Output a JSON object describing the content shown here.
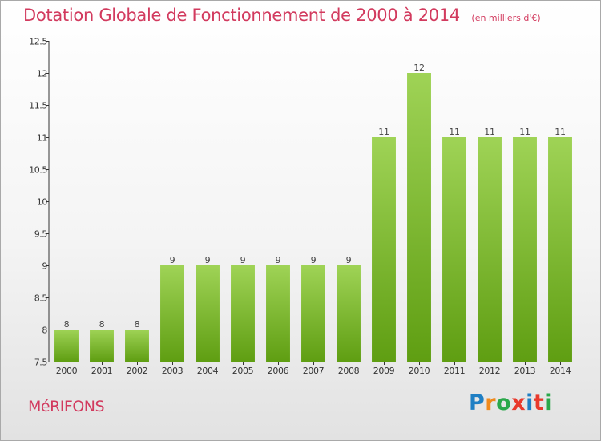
{
  "title": "Dotation Globale de Fonctionnement de 2000 à 2014",
  "subtitle": "(en milliers d'€)",
  "commune": "MéRIFONS",
  "logo": {
    "text": "Proxiti",
    "colors": [
      "#1f7fc4",
      "#f08a1c",
      "#2aa84a",
      "#e8392c",
      "#1f7fc4",
      "#e8392c",
      "#2aa84a"
    ]
  },
  "colors": {
    "title": "#d23a5e",
    "bar_top": "#9fd356",
    "bar_bottom": "#5f9e12",
    "axis": "#333333"
  },
  "chart_data": {
    "type": "bar",
    "title": "Dotation Globale de Fonctionnement de 2000 à 2014",
    "subtitle": "(en milliers d'€)",
    "xlabel": "",
    "ylabel": "",
    "categories": [
      "2000",
      "2001",
      "2002",
      "2003",
      "2004",
      "2005",
      "2006",
      "2007",
      "2008",
      "2009",
      "2010",
      "2011",
      "2012",
      "2013",
      "2014"
    ],
    "values": [
      8,
      8,
      8,
      9,
      9,
      9,
      9,
      9,
      9,
      11,
      12,
      11,
      11,
      11,
      11
    ],
    "ylim": [
      7.5,
      12.5
    ],
    "yticks": [
      "7.5",
      "8",
      "8.5",
      "9",
      "9.5",
      "10",
      "10.5",
      "11",
      "11.5",
      "12",
      "12.5"
    ],
    "grid": false,
    "data_labels": true
  }
}
